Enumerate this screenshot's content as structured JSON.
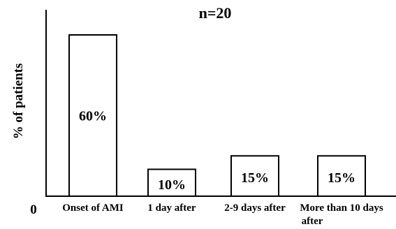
{
  "chart_data": {
    "type": "bar",
    "title": "n=20",
    "ylabel": "% of patients",
    "xlabel": "",
    "origin_label": "0",
    "ylim": [
      0,
      70
    ],
    "categories": [
      {
        "line1": "Onset of AMI",
        "line2": ""
      },
      {
        "line1": "1 day after",
        "line2": ""
      },
      {
        "line1": "2-9 days after",
        "line2": ""
      },
      {
        "line1": "More than 10 days",
        "line2": "after"
      }
    ],
    "values": [
      60,
      10,
      15,
      15
    ],
    "data_labels": [
      "60%",
      "10%",
      "15%",
      "15%"
    ],
    "bar_fill": "#ffffff",
    "bar_stroke": "#000000",
    "grid": false,
    "legend": "none"
  }
}
